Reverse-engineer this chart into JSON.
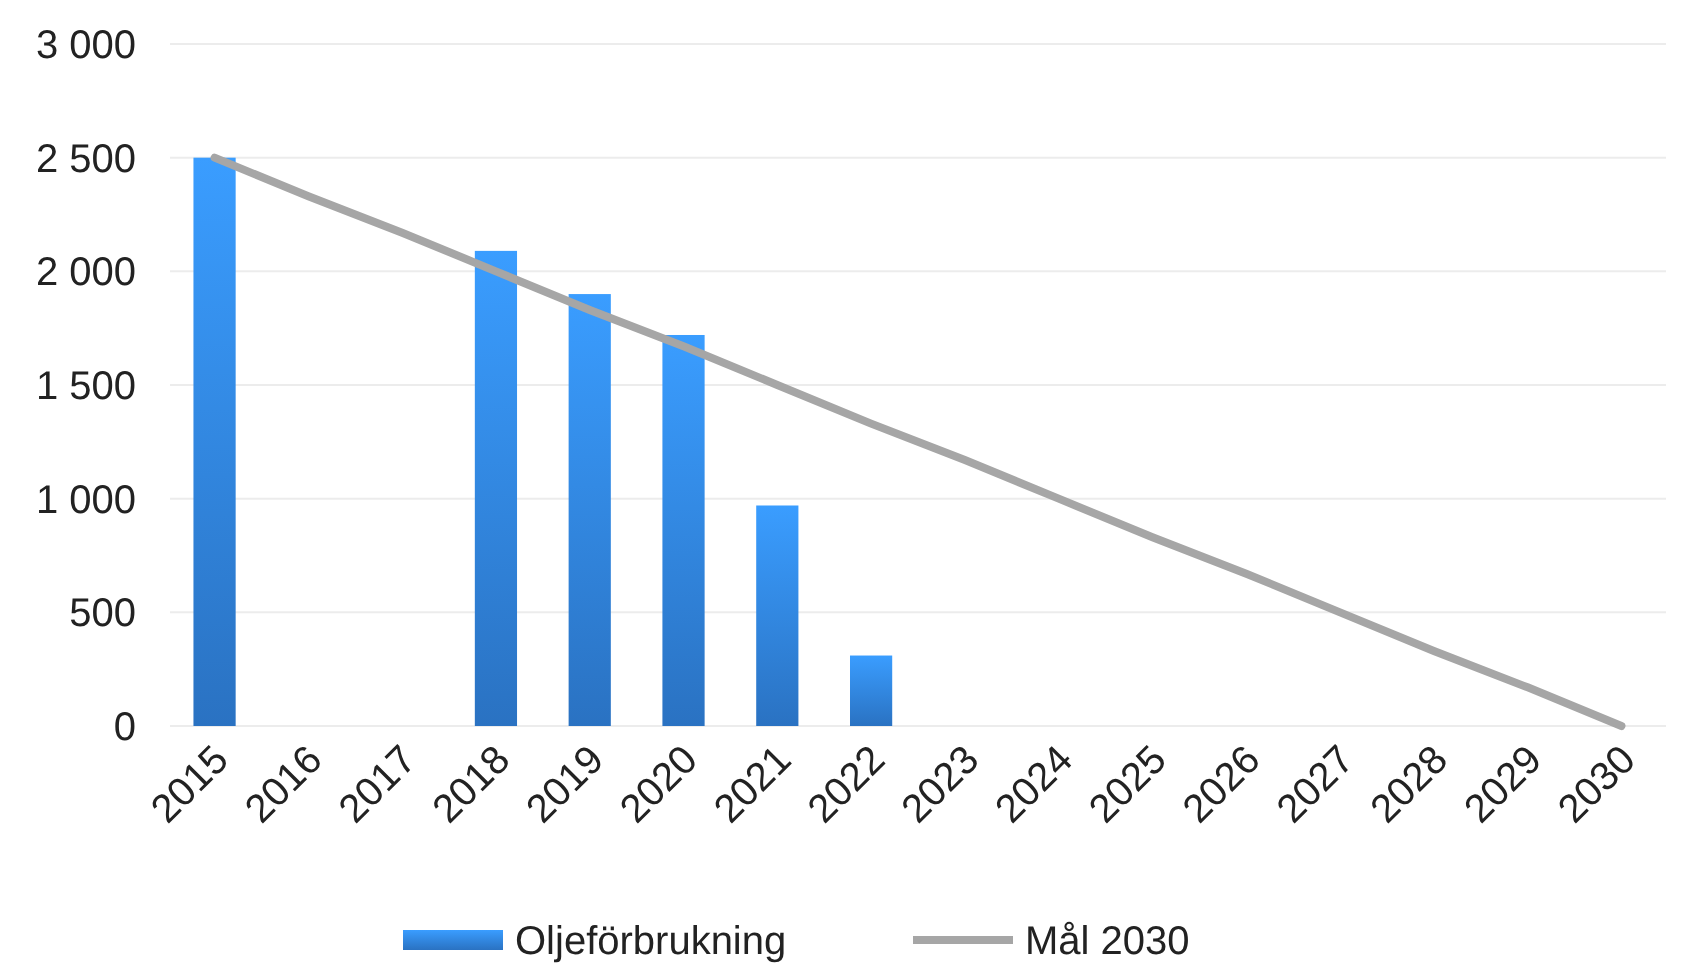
{
  "chart_data": {
    "type": "bar",
    "categories": [
      "2015",
      "2016",
      "2017",
      "2018",
      "2019",
      "2020",
      "2021",
      "2022",
      "2023",
      "2024",
      "2025",
      "2026",
      "2027",
      "2028",
      "2029",
      "2030"
    ],
    "series": [
      {
        "name": "Oljeförbrukning",
        "color": "#2f7fd8",
        "values": [
          2500,
          null,
          null,
          2090,
          1900,
          1720,
          970,
          310,
          null,
          null,
          null,
          null,
          null,
          null,
          null,
          null
        ]
      },
      {
        "name": "Mål 2030",
        "type": "line",
        "color": "#a6a6a6",
        "values": [
          2500,
          2330,
          2170,
          2000,
          1830,
          1670,
          1500,
          1330,
          1170,
          1000,
          830,
          670,
          500,
          330,
          170,
          0
        ]
      }
    ],
    "ylim": [
      0,
      3000
    ],
    "yticks": [
      {
        "value": 0,
        "label": "0"
      },
      {
        "value": 500,
        "label": "500"
      },
      {
        "value": 1000,
        "label": "1 000"
      },
      {
        "value": 1500,
        "label": "1 500"
      },
      {
        "value": 2000,
        "label": "2 000"
      },
      {
        "value": 2500,
        "label": "2 500"
      },
      {
        "value": 3000,
        "label": "3 000"
      }
    ],
    "grid": "y",
    "legend": "bottom",
    "marker": "none",
    "line_style": "solid"
  }
}
